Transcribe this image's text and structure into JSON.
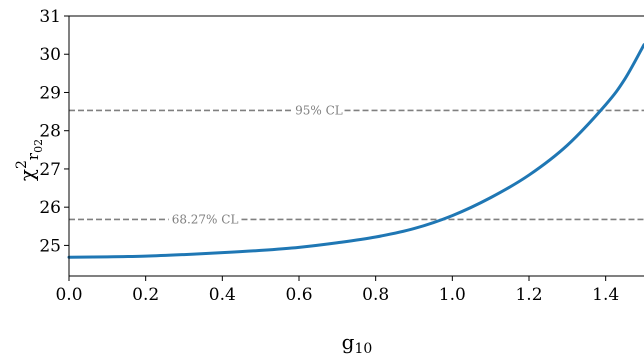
{
  "chart_data": {
    "type": "line",
    "xlabel": "g",
    "xlabel_sub": "10",
    "ylabel": "χ",
    "ylabel_sup": "2",
    "ylabel_sub": "r",
    "ylabel_subsub": "02",
    "xlim": [
      0.0,
      1.5
    ],
    "ylim": [
      24.2,
      31.0
    ],
    "xticks": [
      0.0,
      0.2,
      0.4,
      0.6,
      0.8,
      1.0,
      1.2,
      1.4
    ],
    "xtick_labels": [
      "0.0",
      "0.2",
      "0.4",
      "0.6",
      "0.8",
      "1.0",
      "1.2",
      "1.4"
    ],
    "yticks": [
      25,
      26,
      27,
      28,
      29,
      30,
      31
    ],
    "ytick_labels": [
      "25",
      "26",
      "27",
      "28",
      "29",
      "30",
      "31"
    ],
    "grid": false,
    "series": [
      {
        "color": "#1f77b4",
        "x": [
          0.0,
          0.1,
          0.2,
          0.3,
          0.4,
          0.5,
          0.6,
          0.7,
          0.8,
          0.9,
          1.0,
          1.1,
          1.2,
          1.3,
          1.4,
          1.45,
          1.5
        ],
        "y": [
          24.69,
          24.7,
          24.72,
          24.76,
          24.81,
          24.87,
          24.95,
          25.07,
          25.22,
          25.44,
          25.78,
          26.25,
          26.84,
          27.62,
          28.68,
          29.35,
          30.25
        ]
      }
    ],
    "reference_lines": [
      {
        "y": 28.53,
        "label": "95% CL",
        "label_x": 0.652,
        "color": "#808080"
      },
      {
        "y": 25.68,
        "label": "68.27% CL",
        "label_x": 0.355,
        "color": "#808080"
      }
    ]
  }
}
